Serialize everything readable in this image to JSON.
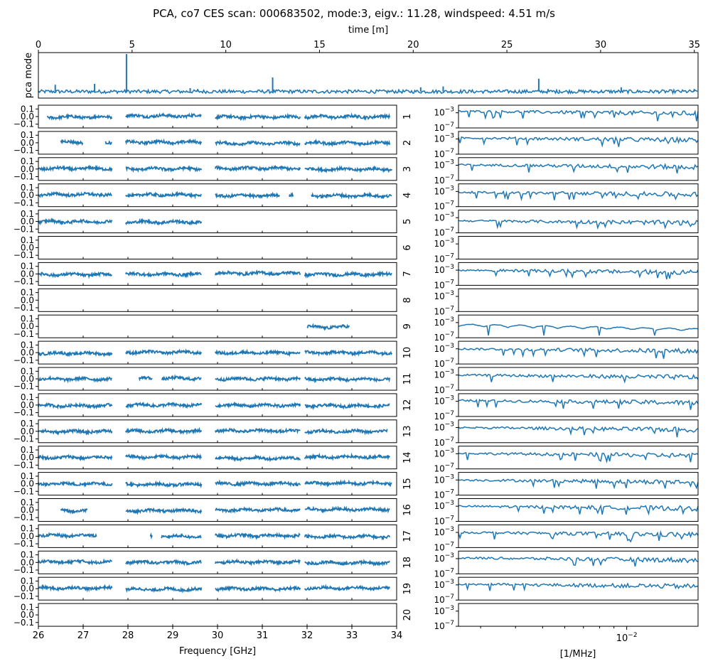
{
  "chart_data": {
    "type": "line",
    "title": "PCA, co7 CES scan: 000683502, mode:3, eigv.: 11.28, windspeed: 4.51 m/s",
    "series_color": "#1f77b4",
    "top_panel": {
      "type": "line",
      "xlabel": "time [m]",
      "ylabel": "pca mode",
      "xlim": [
        0,
        35.2
      ],
      "xticks": [
        "0",
        "5",
        "10",
        "15",
        "20",
        "25",
        "30",
        "35"
      ],
      "baseline_level": 0.12,
      "spikes": [
        {
          "t": 0.9,
          "h": 0.28
        },
        {
          "t": 3.0,
          "h": 0.3
        },
        {
          "t": 4.7,
          "h": 1.0
        },
        {
          "t": 8.1,
          "h": 0.2
        },
        {
          "t": 8.5,
          "h": 0.18
        },
        {
          "t": 12.5,
          "h": 0.45
        },
        {
          "t": 14.2,
          "h": 0.15
        },
        {
          "t": 20.4,
          "h": 0.22
        },
        {
          "t": 21.6,
          "h": 0.24
        },
        {
          "t": 26.7,
          "h": 0.42
        },
        {
          "t": 27.2,
          "h": 0.18
        },
        {
          "t": 27.8,
          "h": 0.16
        },
        {
          "t": 31.1,
          "h": 0.22
        },
        {
          "t": 35.0,
          "h": 0.18
        }
      ]
    },
    "frequency_panels": {
      "xlabel": "Frequency [GHz]",
      "xlim": [
        26,
        34
      ],
      "xticks": [
        "26",
        "27",
        "28",
        "29",
        "30",
        "31",
        "32",
        "33",
        "34"
      ],
      "ylim": [
        -0.15,
        0.15
      ],
      "yticks": [
        "0.1",
        "0.0",
        "−0.1"
      ],
      "segments": [
        [
          [
            26.2,
            27.65
          ],
          [
            27.95,
            29.65
          ],
          [
            29.95,
            31.85
          ],
          [
            31.95,
            33.85
          ]
        ],
        [
          [
            26.5,
            27.0
          ],
          [
            27.5,
            27.65
          ],
          [
            27.95,
            29.65
          ],
          [
            29.95,
            31.85
          ],
          [
            31.95,
            33.85
          ]
        ],
        [
          [
            26.0,
            27.65
          ],
          [
            27.95,
            29.65
          ],
          [
            29.95,
            31.85
          ],
          [
            31.95,
            33.9
          ]
        ],
        [
          [
            26.0,
            27.65
          ],
          [
            27.95,
            29.65
          ],
          [
            29.95,
            31.4
          ],
          [
            31.6,
            31.7
          ],
          [
            32.1,
            33.9
          ]
        ],
        [
          [
            26.0,
            27.65
          ],
          [
            27.95,
            29.65
          ]
        ],
        [],
        [
          [
            26.0,
            27.65
          ],
          [
            27.95,
            29.65
          ],
          [
            29.95,
            31.85
          ],
          [
            31.95,
            33.9
          ]
        ],
        [],
        [
          [
            32.0,
            32.95
          ]
        ],
        [
          [
            26.0,
            27.65
          ],
          [
            27.95,
            29.65
          ],
          [
            29.95,
            31.85
          ],
          [
            31.95,
            33.9
          ]
        ],
        [
          [
            26.0,
            27.65
          ],
          [
            28.25,
            28.55
          ],
          [
            28.75,
            29.65
          ],
          [
            29.95,
            31.85
          ],
          [
            31.95,
            33.85
          ]
        ],
        [
          [
            26.0,
            27.65
          ],
          [
            27.95,
            29.65
          ],
          [
            29.95,
            31.85
          ],
          [
            31.95,
            33.85
          ]
        ],
        [
          [
            26.0,
            27.65
          ],
          [
            27.95,
            29.65
          ],
          [
            29.95,
            31.85
          ],
          [
            31.95,
            33.8
          ]
        ],
        [
          [
            26.0,
            27.65
          ],
          [
            27.95,
            29.65
          ],
          [
            29.95,
            31.85
          ],
          [
            31.95,
            33.85
          ]
        ],
        [
          [
            26.0,
            27.65
          ],
          [
            27.95,
            29.65
          ],
          [
            29.95,
            31.85
          ],
          [
            31.95,
            33.9
          ]
        ],
        [
          [
            26.5,
            27.1
          ],
          [
            27.95,
            29.65
          ],
          [
            29.95,
            31.85
          ],
          [
            31.95,
            33.85
          ]
        ],
        [
          [
            26.0,
            27.3
          ],
          [
            28.5,
            28.55
          ],
          [
            28.75,
            29.65
          ],
          [
            29.95,
            31.85
          ],
          [
            31.95,
            33.85
          ]
        ],
        [
          [
            26.0,
            27.65
          ],
          [
            27.95,
            29.65
          ],
          [
            29.95,
            31.85
          ],
          [
            31.95,
            33.85
          ]
        ],
        [
          [
            26.0,
            27.65
          ],
          [
            27.95,
            29.65
          ],
          [
            29.95,
            31.85
          ],
          [
            31.95,
            33.85
          ]
        ],
        []
      ]
    },
    "spectrum_panels": {
      "xlabel": "[1/MHz]",
      "xscale": "log",
      "yscale": "log",
      "xlim": [
        0.0025,
        0.018
      ],
      "xtick": {
        "value": 0.01,
        "label": "10−2"
      },
      "ylim": [
        1e-07,
        0.1
      ],
      "yticks": [
        {
          "base": "10",
          "exp": "−3"
        },
        {
          "base": "10",
          "exp": "−7"
        }
      ],
      "active": [
        true,
        true,
        true,
        true,
        true,
        false,
        true,
        false,
        true,
        true,
        true,
        true,
        true,
        true,
        true,
        true,
        true,
        true,
        true,
        false
      ],
      "level_log10": [
        -2.6,
        -2.7,
        -2.9,
        -3.2,
        -3.8,
        null,
        -3.0,
        null,
        -4.2,
        -3.0,
        -3.0,
        -2.8,
        -3.0,
        -2.9,
        -3.0,
        -3.0,
        -3.0,
        -2.8,
        -2.8,
        null
      ]
    },
    "channel_labels": [
      "1",
      "2",
      "3",
      "4",
      "5",
      "6",
      "7",
      "8",
      "9",
      "10",
      "11",
      "12",
      "13",
      "14",
      "15",
      "16",
      "17",
      "18",
      "19",
      "20"
    ]
  }
}
